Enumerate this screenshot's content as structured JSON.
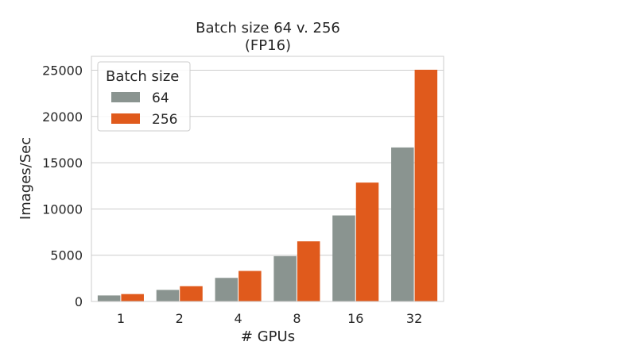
{
  "chart_data": {
    "type": "bar",
    "title": "Batch size 64 v. 256",
    "subtitle": "(FP16)",
    "xlabel": "# GPUs",
    "ylabel": "Images/Sec",
    "categories": [
      "1",
      "2",
      "4",
      "8",
      "16",
      "32"
    ],
    "ylim": [
      0,
      26500
    ],
    "yticks": [
      0,
      5000,
      10000,
      15000,
      20000,
      25000
    ],
    "grid": true,
    "legend": {
      "title": "Batch size",
      "placement": "top-left"
    },
    "series": [
      {
        "name": "64",
        "color": "#8a9490",
        "values": [
          650,
          1250,
          2550,
          4900,
          9300,
          16650
        ]
      },
      {
        "name": "256",
        "color": "#e05a1c",
        "values": [
          800,
          1650,
          3300,
          6500,
          12850,
          25050
        ]
      }
    ]
  }
}
